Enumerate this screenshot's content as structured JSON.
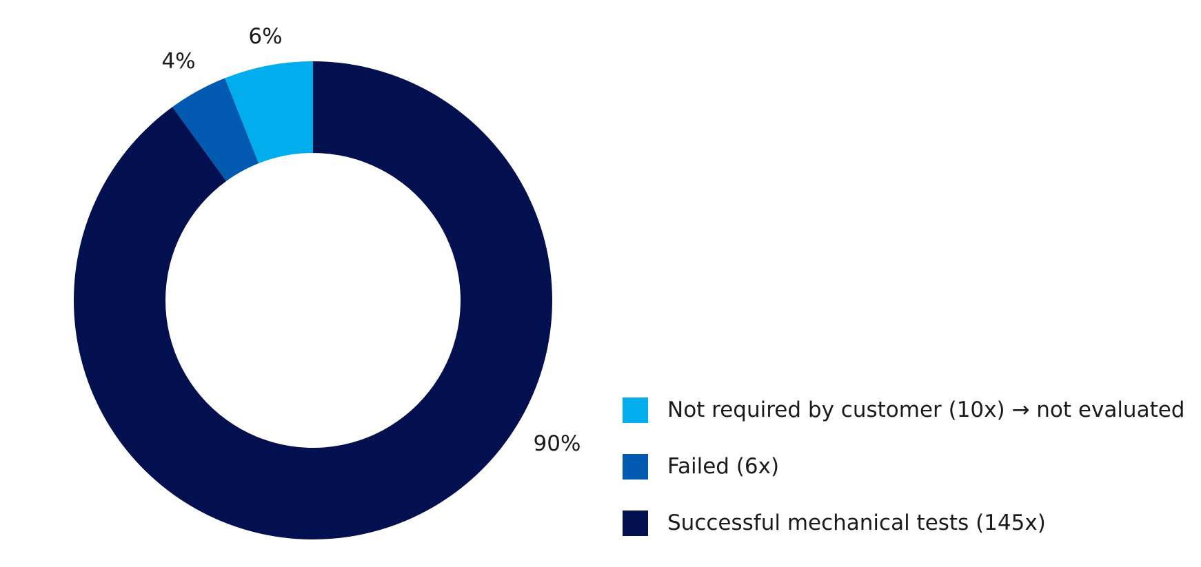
{
  "chart_data": {
    "type": "pie",
    "variant": "donut",
    "title": "",
    "slices": [
      {
        "label": "Successful mechanical tests (145x)",
        "value": 90,
        "data_label": "90%",
        "color": "#03104f"
      },
      {
        "label": "Failed (6x)",
        "value": 4,
        "data_label": "4%",
        "color": "#015aaf"
      },
      {
        "label": "Not required by customer (10x) → not evaluated",
        "value": 6,
        "data_label": "6%",
        "color": "#01aded"
      }
    ],
    "start_angle": "12 o'clock",
    "direction": "clockwise",
    "legend_position": "bottom-right",
    "legend_order": [
      2,
      1,
      0
    ]
  }
}
